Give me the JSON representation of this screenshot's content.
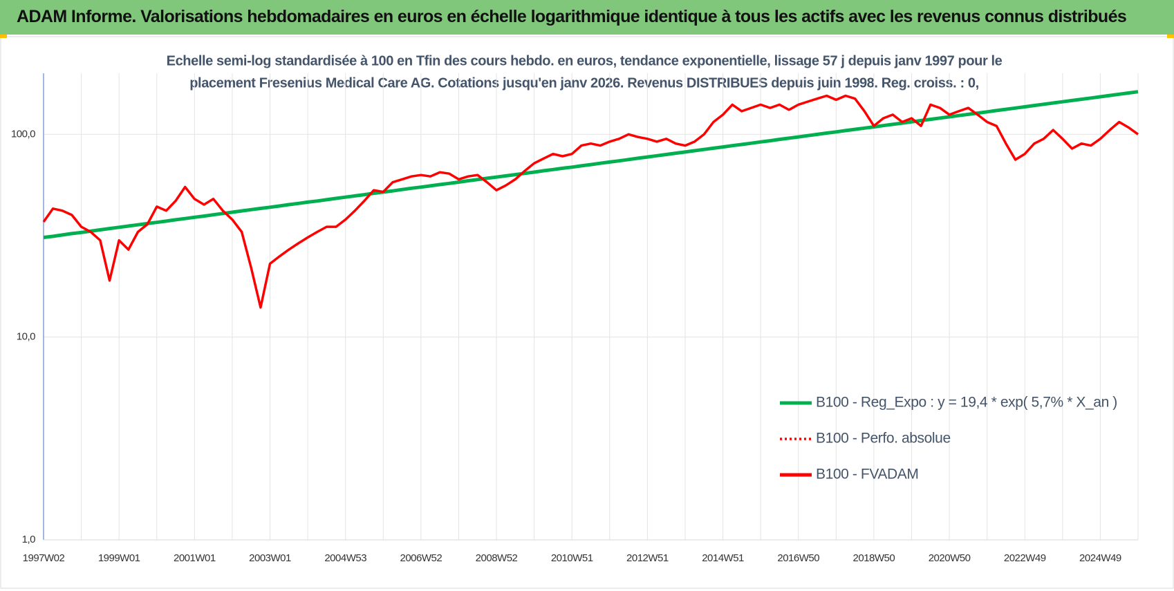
{
  "header": {
    "title": "ADAM Informe. Valorisations hebdomadaires en euros en échelle logarithmique identique à tous les actifs avec les revenus connus distribués"
  },
  "chart_data": {
    "type": "line",
    "subtitle": [
      "Echelle semi-log standardisée à 100 en Tfin des cours hebdo. en euros, tendance exponentielle, lissage 57 j depuis janv 1997 pour le",
      "placement Fresenius Medical Care AG. Cotations jusqu'en janv 2026. Revenus DISTRIBUES depuis juin 1998. Reg. croiss. : 0,"
    ],
    "categories": [
      "1997W02",
      null,
      null,
      null,
      null,
      null,
      null,
      null,
      "1999W01",
      null,
      null,
      null,
      null,
      null,
      null,
      null,
      "2001W01",
      null,
      null,
      null,
      null,
      null,
      null,
      null,
      "2003W01",
      null,
      null,
      null,
      null,
      null,
      null,
      null,
      "2004W53",
      null,
      null,
      null,
      null,
      null,
      null,
      null,
      "2006W52",
      null,
      null,
      null,
      null,
      null,
      null,
      null,
      "2008W52",
      null,
      null,
      null,
      null,
      null,
      null,
      null,
      "2010W51",
      null,
      null,
      null,
      null,
      null,
      null,
      null,
      "2012W51",
      null,
      null,
      null,
      null,
      null,
      null,
      null,
      "2014W51",
      null,
      null,
      null,
      null,
      null,
      null,
      null,
      "2016W50",
      null,
      null,
      null,
      null,
      null,
      null,
      null,
      "2018W50",
      null,
      null,
      null,
      null,
      null,
      null,
      null,
      "2020W50",
      null,
      null,
      null,
      null,
      null,
      null,
      null,
      "2022W49",
      null,
      null,
      null,
      null,
      null,
      null,
      null,
      "2024W49",
      null,
      null,
      null,
      null
    ],
    "log_scale": true,
    "ylim": [
      1,
      200
    ],
    "yticks": [
      {
        "value": 1,
        "label": "1,0"
      },
      {
        "value": 10,
        "label": "10,0"
      },
      {
        "value": 100,
        "label": "100,0"
      }
    ],
    "grid": true,
    "legend": "right",
    "series": [
      {
        "name": "B100 - Reg_Expo : y = 19,4 * exp( 5,7% *  X_an )",
        "color": "#00b050",
        "values": [
          31.0,
          31.4,
          31.9,
          32.4,
          32.8,
          33.3,
          33.8,
          34.3,
          34.8,
          35.3,
          35.8,
          36.3,
          36.8,
          37.3,
          37.9,
          38.4,
          39.0,
          39.5,
          40.1,
          40.7,
          41.3,
          41.9,
          42.5,
          43.1,
          43.7,
          44.3,
          45.0,
          45.6,
          46.3,
          46.9,
          47.6,
          48.3,
          49.0,
          49.7,
          50.4,
          51.2,
          51.9,
          52.6,
          53.4,
          54.2,
          54.9,
          55.7,
          56.5,
          57.3,
          58.1,
          59.0,
          59.8,
          60.7,
          61.5,
          62.4,
          63.3,
          64.2,
          65.1,
          66.1,
          67.0,
          68.0,
          68.9,
          69.9,
          70.9,
          72.0,
          73.0,
          74.0,
          75.1,
          76.2,
          77.3,
          78.4,
          79.5,
          80.7,
          81.8,
          83.0,
          84.2,
          85.4,
          86.6,
          87.9,
          89.1,
          90.4,
          91.7,
          93.0,
          94.4,
          95.7,
          97.1,
          98.5,
          99.9,
          101.4,
          102.8,
          104.3,
          105.8,
          107.3,
          108.8,
          110.4,
          112.0,
          113.6,
          115.2,
          116.9,
          118.6,
          120.3,
          122.0,
          123.7,
          125.5,
          127.3,
          129.1,
          131.0,
          132.9,
          134.8,
          136.7,
          138.7,
          140.7,
          142.7,
          144.7,
          146.8,
          148.9,
          151.0,
          153.2,
          155.4,
          157.7,
          159.9,
          162.2
        ]
      },
      {
        "name": "B100 - Perfo. absolue",
        "color": "#ff0000",
        "dash": "dotted"
      },
      {
        "name": "B100 - FVADAM",
        "color": "#ff0000",
        "values": [
          37,
          43,
          42,
          40,
          35,
          33,
          30,
          19,
          30,
          27,
          33,
          36,
          44,
          42,
          47,
          55,
          48,
          45,
          48,
          42,
          38,
          33,
          22,
          14,
          23,
          25,
          27,
          29,
          31,
          33,
          35,
          35,
          38,
          42,
          47,
          53,
          52,
          58,
          60,
          62,
          63,
          62,
          65,
          64,
          60,
          62,
          63,
          58,
          53,
          56,
          60,
          66,
          72,
          76,
          80,
          78,
          80,
          88,
          90,
          88,
          92,
          95,
          100,
          97,
          95,
          92,
          95,
          90,
          88,
          92,
          100,
          115,
          125,
          140,
          130,
          135,
          140,
          135,
          140,
          132,
          140,
          145,
          150,
          155,
          148,
          155,
          150,
          130,
          110,
          120,
          125,
          115,
          120,
          110,
          140,
          135,
          125,
          130,
          135,
          125,
          115,
          110,
          90,
          75,
          80,
          90,
          95,
          105,
          95,
          85,
          90,
          88,
          95,
          105,
          115,
          108,
          100
        ]
      }
    ]
  }
}
